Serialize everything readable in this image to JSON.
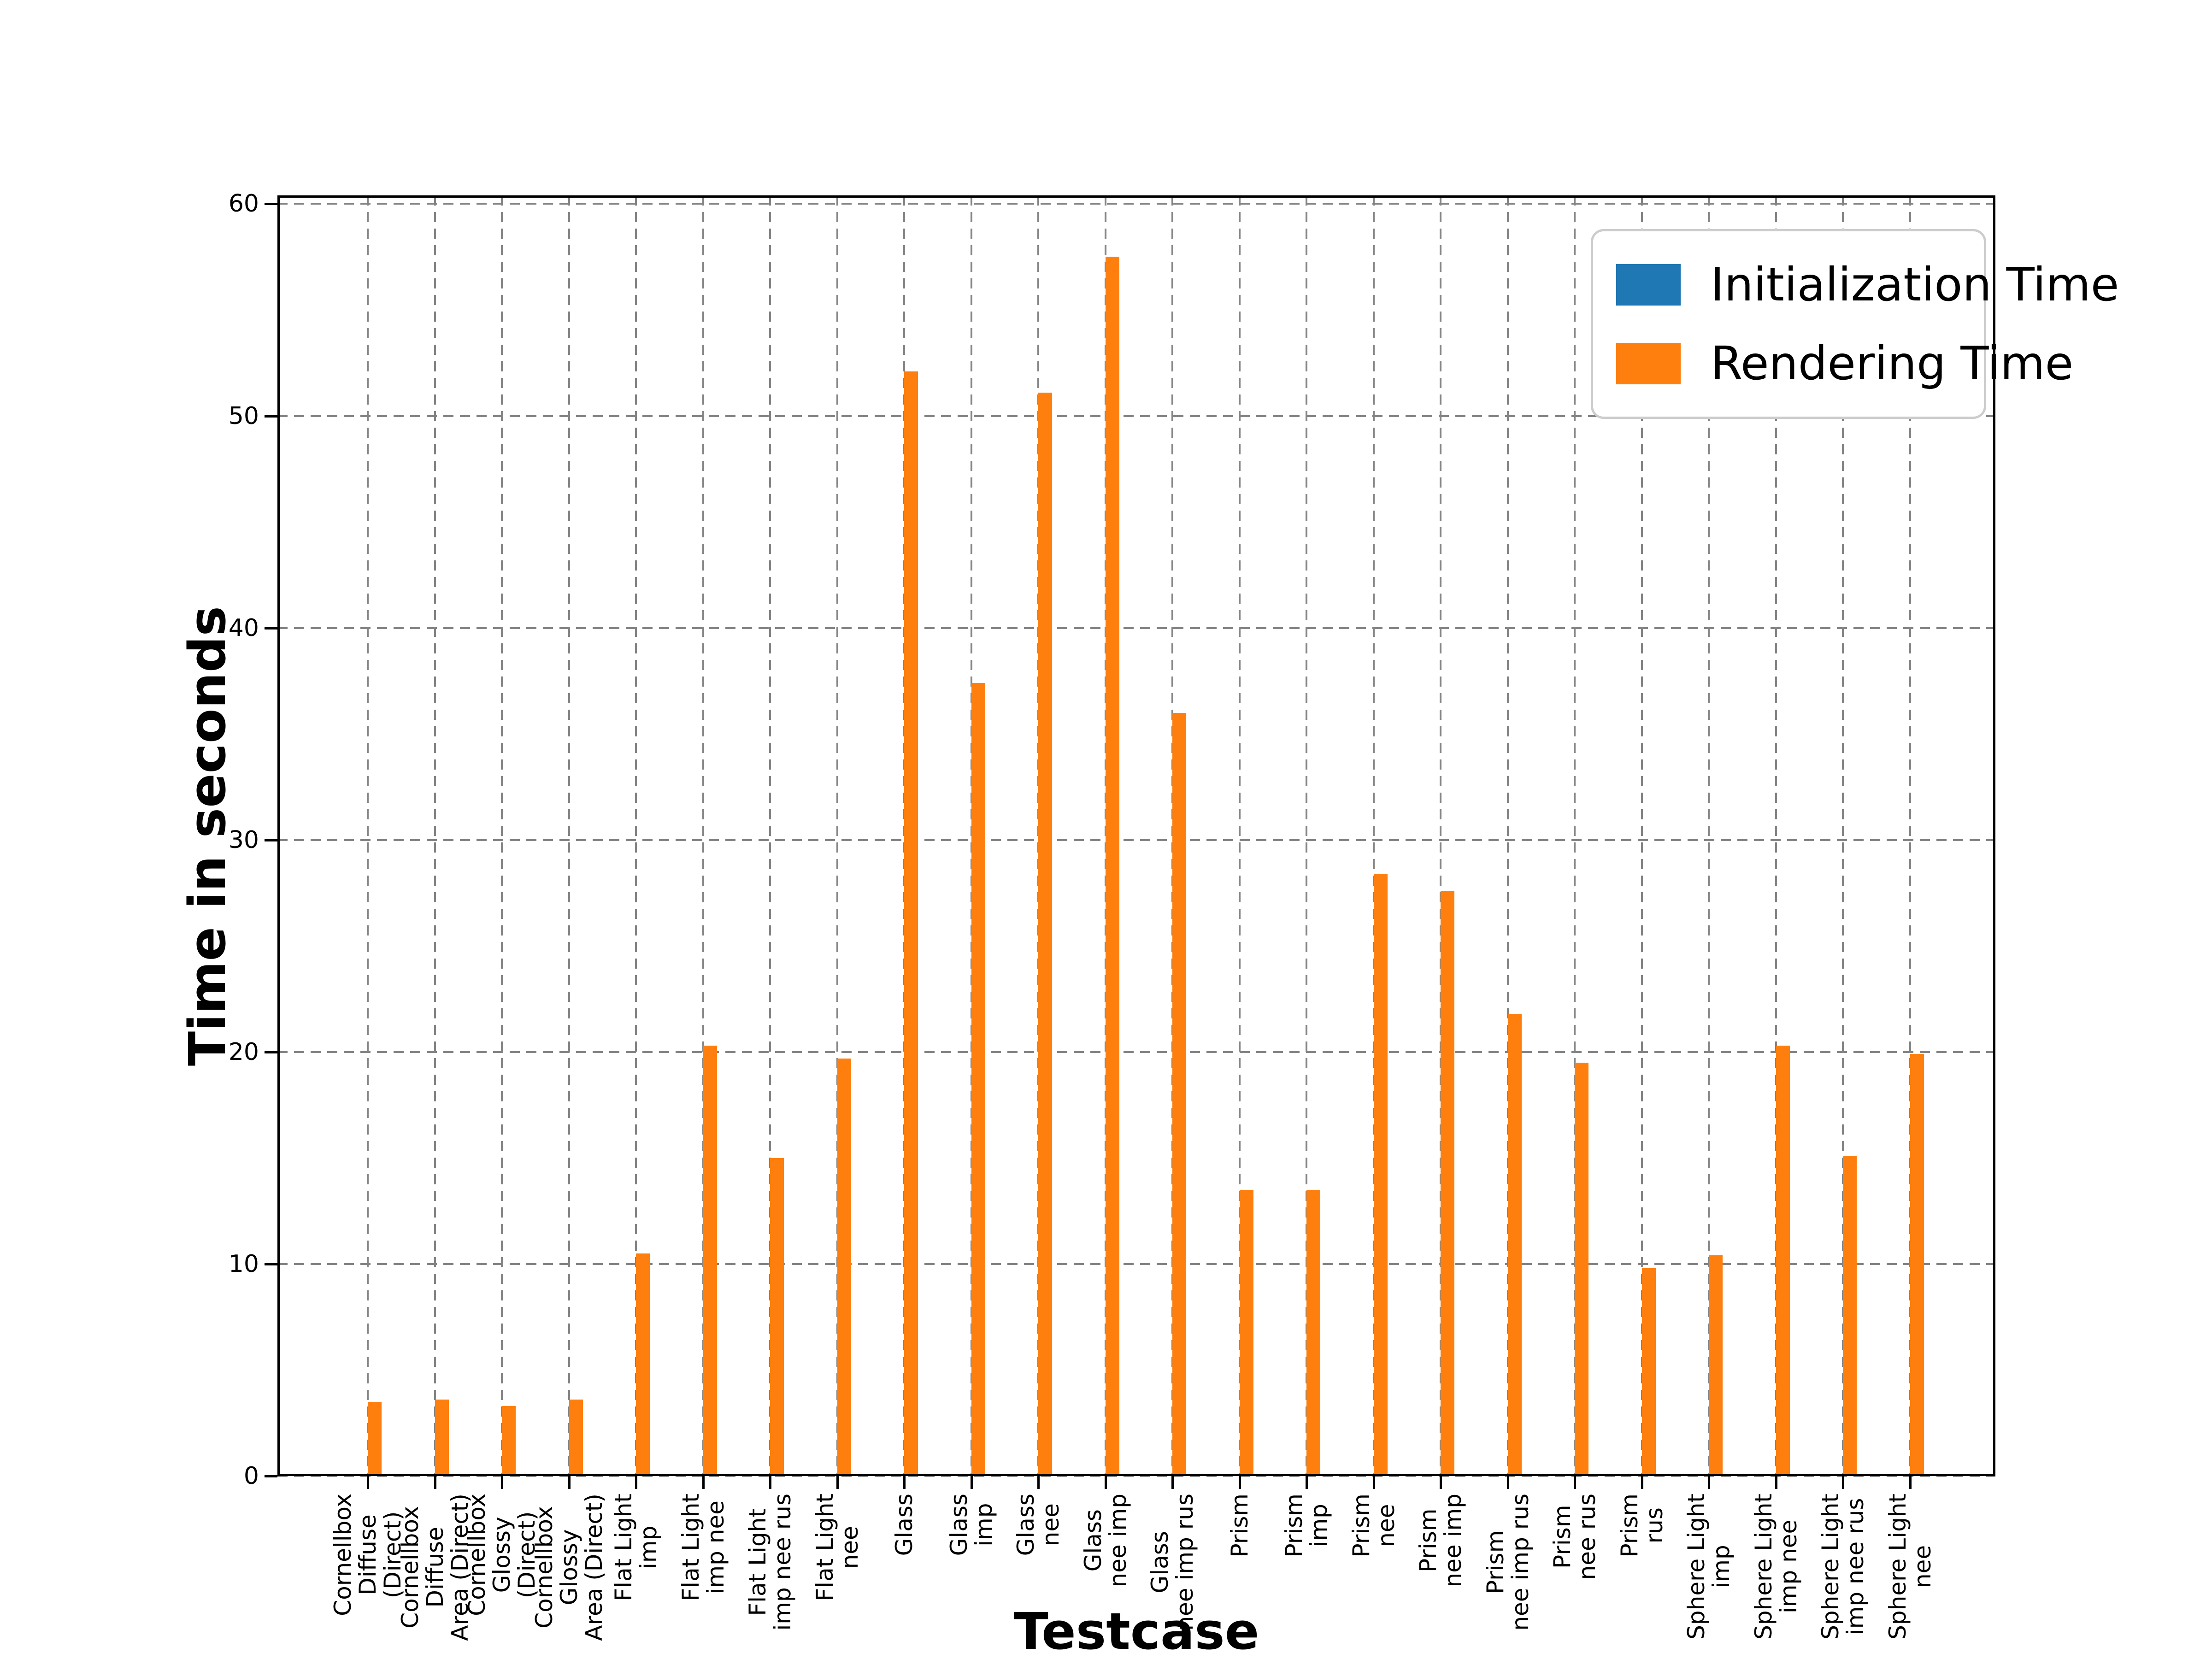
{
  "figure": {
    "background": "#ffffff"
  },
  "chart_data": {
    "type": "bar",
    "title": "",
    "xlabel": "Testcase",
    "ylabel": "Time in seconds",
    "ylim": [
      0,
      60.4
    ],
    "yticks": [
      0,
      10,
      20,
      30,
      40,
      50,
      60
    ],
    "ytick_labels": [
      "0",
      "10",
      "20",
      "30",
      "40",
      "50",
      "60"
    ],
    "grid": true,
    "grid_style": "dashed",
    "legend_position": "upper right",
    "categories": [
      "Cornellbox Diffuse (Direct)",
      "Cornellbox Diffuse Area (Direct)",
      "Cornellbox Glossy (Direct)",
      "Cornellbox Glossy Area (Direct)",
      "Flat Light imp",
      "Flat Light imp nee",
      "Flat Light imp nee rus",
      "Flat Light nee",
      "Glass",
      "Glass imp",
      "Glass nee",
      "Glass nee imp",
      "Glass nee imp rus",
      "Prism",
      "Prism imp",
      "Prism nee",
      "Prism nee imp",
      "Prism nee imp rus",
      "Prism nee rus",
      "Prism rus",
      "Sphere Light imp",
      "Sphere Light imp nee",
      "Sphere Light imp nee rus",
      "Sphere Light nee"
    ],
    "category_label_lines": [
      [
        "Cornellbox",
        "Diffuse",
        "(Direct)"
      ],
      [
        "Cornellbox",
        "Diffuse",
        "Area (Direct)"
      ],
      [
        "Cornellbox",
        "Glossy",
        "(Direct)"
      ],
      [
        "Cornellbox",
        "Glossy",
        "Area (Direct)"
      ],
      [
        "Flat Light",
        "imp"
      ],
      [
        "Flat Light",
        "imp nee"
      ],
      [
        "Flat Light",
        "imp nee rus"
      ],
      [
        "Flat Light",
        "nee"
      ],
      [
        "Glass"
      ],
      [
        "Glass",
        "imp"
      ],
      [
        "Glass",
        "nee"
      ],
      [
        "Glass",
        "nee imp"
      ],
      [
        "Glass",
        "nee imp rus"
      ],
      [
        "Prism"
      ],
      [
        "Prism",
        "imp"
      ],
      [
        "Prism",
        "nee"
      ],
      [
        "Prism",
        "nee imp"
      ],
      [
        "Prism",
        "nee imp rus"
      ],
      [
        "Prism",
        "nee rus"
      ],
      [
        "Prism",
        "rus"
      ],
      [
        "Sphere Light",
        "imp"
      ],
      [
        "Sphere Light",
        "imp nee"
      ],
      [
        "Sphere Light",
        "imp nee rus"
      ],
      [
        "Sphere Light",
        "nee"
      ]
    ],
    "series": [
      {
        "name": "Initialization Time",
        "color": "#1f77b4",
        "values": [
          0,
          0,
          0,
          0,
          0,
          0,
          0,
          0,
          0,
          0,
          0,
          0,
          0,
          0,
          0,
          0,
          0,
          0,
          0,
          0,
          0,
          0,
          0,
          0
        ]
      },
      {
        "name": "Rendering Time",
        "color": "#ff7f0e",
        "values": [
          3.5,
          3.6,
          3.3,
          3.6,
          10.5,
          20.3,
          15.0,
          19.7,
          52.1,
          37.4,
          51.1,
          57.5,
          36.0,
          13.5,
          13.5,
          28.4,
          27.6,
          21.8,
          19.5,
          9.8,
          10.4,
          20.3,
          15.1,
          19.9
        ]
      }
    ]
  },
  "legend": {
    "items": [
      {
        "label": "Initialization Time",
        "color": "#1f77b4"
      },
      {
        "label": "Rendering Time",
        "color": "#ff7f0e"
      }
    ]
  },
  "style": {
    "grid_color": "#848484",
    "axis_color": "#000000",
    "text_color": "#000000"
  }
}
